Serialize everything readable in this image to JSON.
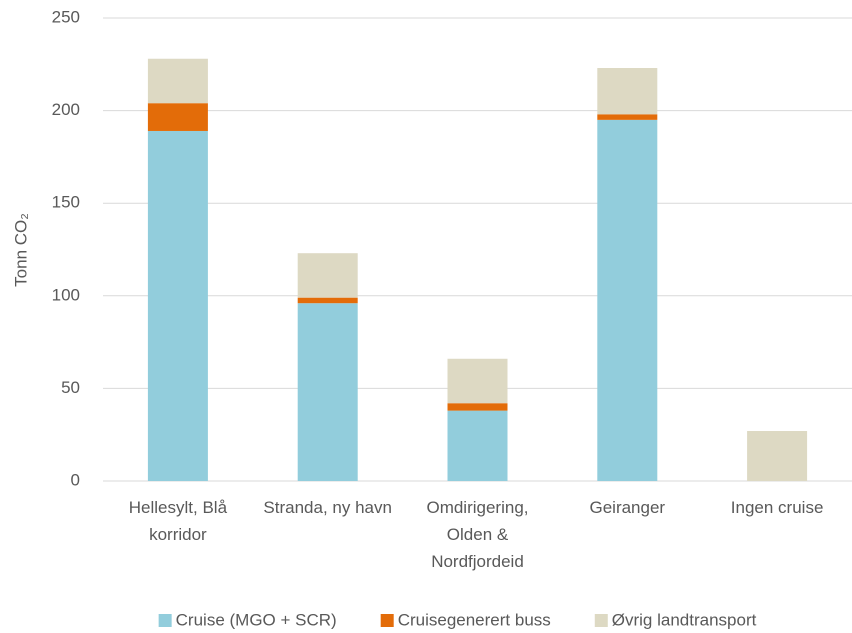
{
  "chart_data": {
    "type": "bar",
    "stacked": true,
    "ylabel": "Tonn CO₂",
    "categories": [
      "Hellesylt, Blå korridor",
      "Stranda, ny havn",
      "Omdirigering, Olden & Nordfjordeid",
      "Geiranger",
      "Ingen cruise"
    ],
    "series": [
      {
        "name": "Cruise (MGO + SCR)",
        "color": "#92cddc",
        "values": [
          189,
          96,
          38,
          195,
          0
        ]
      },
      {
        "name": "Cruisegenerert buss",
        "color": "#e36c09",
        "values": [
          15,
          3,
          4,
          3,
          0
        ]
      },
      {
        "name": "Øvrig landtransport",
        "color": "#ddd9c3",
        "values": [
          24,
          24,
          24,
          25,
          27
        ]
      }
    ],
    "ylim": [
      0,
      250
    ],
    "yticks": [
      0,
      50,
      100,
      150,
      200,
      250
    ],
    "grid": true,
    "legend": "bottom"
  }
}
